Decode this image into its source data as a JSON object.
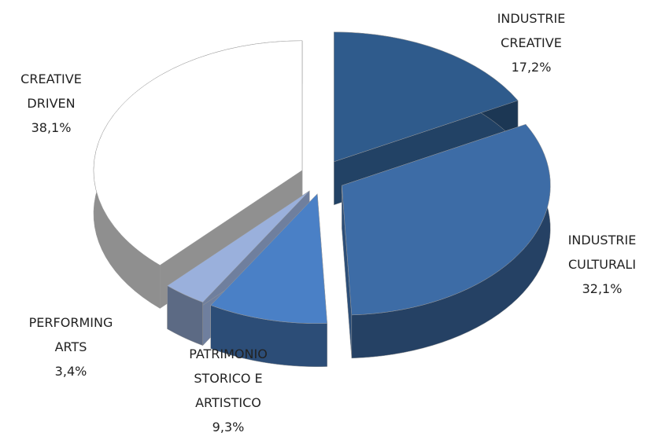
{
  "chart_data": {
    "type": "pie3d",
    "categories": [
      "INDUSTRIE CREATIVE",
      "INDUSTRIE CULTURALI",
      "PATRIMONIO STORICO E ARTISTICO",
      "PERFORMING ARTS",
      "CREATIVE DRIVEN"
    ],
    "values": [
      17.2,
      32.1,
      9.3,
      3.4,
      38.1
    ],
    "value_labels": [
      "17,2%",
      "32,1%",
      "9,3%",
      "3,4%",
      "38,1%"
    ],
    "colors": [
      "#2f5b8c",
      "#3d6ca6",
      "#4a80c6",
      "#9ab0dc",
      "#ffffff"
    ]
  }
}
